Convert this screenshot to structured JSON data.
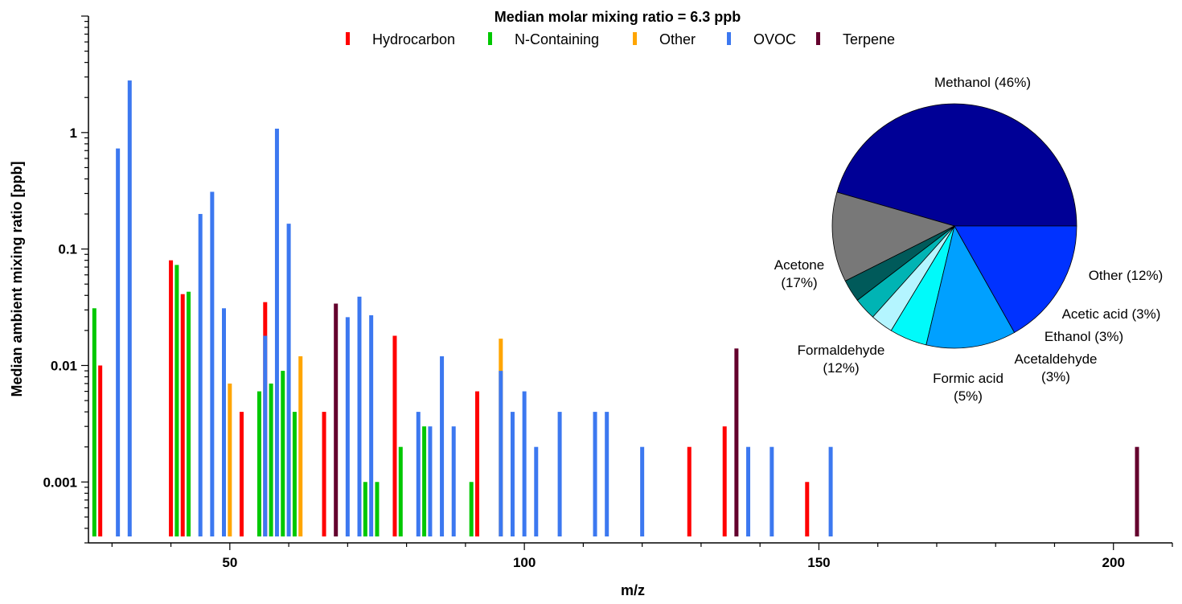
{
  "chart_data": [
    {
      "type": "bar",
      "title": "Median molar mixing ratio = 6.3 ppb",
      "xlabel": "m/z",
      "ylabel": "Median ambient mixing ratio [ppb]",
      "x_scale": "linear",
      "y_scale": "log",
      "xlim": [
        26,
        210
      ],
      "ylim": [
        0.0003,
        10
      ],
      "x_ticks": [
        {
          "value": 50,
          "label": "50"
        },
        {
          "value": 100,
          "label": "100"
        },
        {
          "value": 150,
          "label": "150"
        },
        {
          "value": 200,
          "label": "200"
        }
      ],
      "y_ticks": [
        {
          "value": 1,
          "label": "1"
        },
        {
          "value": 0.1,
          "label": "0.1"
        },
        {
          "value": 0.01,
          "label": "0.01"
        },
        {
          "value": 0.001,
          "label": "0.001"
        }
      ],
      "legend_position": "top",
      "series": [
        {
          "name": "Hydrocarbon",
          "color": "#ff0000",
          "x": [
            28,
            40,
            42,
            52,
            56,
            66,
            78,
            92,
            128,
            134,
            148
          ],
          "values": [
            0.01,
            0.08,
            0.041,
            0.004,
            0.035,
            0.004,
            0.018,
            0.006,
            0.002,
            0.003,
            0.001
          ]
        },
        {
          "name": "N-Containing",
          "color": "#00c800",
          "x": [
            27,
            41,
            43,
            55,
            57,
            59,
            61,
            73,
            75,
            79,
            83,
            91
          ],
          "values": [
            0.031,
            0.073,
            0.043,
            0.006,
            0.007,
            0.009,
            0.004,
            0.001,
            0.001,
            0.002,
            0.003,
            0.001
          ]
        },
        {
          "name": "Other",
          "color": "#ffa500",
          "x": [
            50,
            62,
            96
          ],
          "values": [
            0.007,
            0.012,
            0.017
          ]
        },
        {
          "name": "OVOC",
          "color": "#3c78f0",
          "x": [
            31,
            33,
            45,
            47,
            49,
            56,
            58,
            60,
            70,
            72,
            74,
            82,
            84,
            86,
            88,
            96,
            98,
            100,
            102,
            106,
            112,
            114,
            120,
            138,
            142,
            152
          ],
          "values": [
            0.73,
            2.8,
            0.2,
            0.31,
            0.031,
            0.018,
            1.08,
            0.165,
            0.026,
            0.039,
            0.027,
            0.004,
            0.003,
            0.012,
            0.003,
            0.009,
            0.004,
            0.006,
            0.002,
            0.004,
            0.004,
            0.004,
            0.002,
            0.002,
            0.002,
            0.002
          ]
        },
        {
          "name": "Terpene",
          "color": "#64002d",
          "x": [
            68,
            136,
            204
          ],
          "values": [
            0.034,
            0.014,
            0.002
          ]
        }
      ]
    },
    {
      "type": "pie",
      "slices": [
        {
          "label": "Methanol (46%)",
          "value": 46,
          "color": "#000096"
        },
        {
          "label": "Other (12%)",
          "value": 12,
          "color": "#787878"
        },
        {
          "label": "Acetic acid (3%)",
          "value": 3,
          "color": "#005a5a"
        },
        {
          "label": "Ethanol (3%)",
          "value": 3,
          "color": "#00b4b4"
        },
        {
          "label": "Acetaldehyde (3%)",
          "value": 3,
          "color": "#b4f5ff"
        },
        {
          "label": "Formic acid (5%)",
          "value": 5,
          "color": "#00fafa"
        },
        {
          "label": "Formaldehyde (12%)",
          "value": 12,
          "color": "#00a0ff"
        },
        {
          "label": "Acetone (17%)",
          "value": 17,
          "color": "#0032ff"
        }
      ]
    }
  ]
}
